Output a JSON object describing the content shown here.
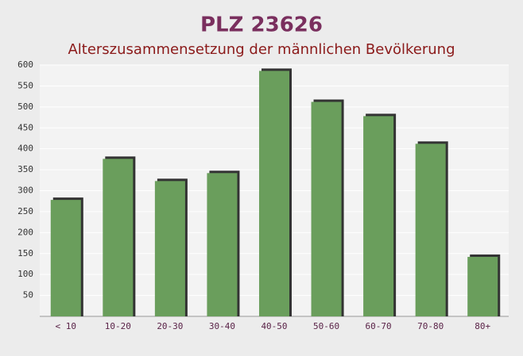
{
  "chart_data": {
    "type": "bar",
    "title": "PLZ 23626",
    "subtitle": "Alterszusammensetzung der männlichen Bevölkerung",
    "categories": [
      "< 10",
      "10-20",
      "20-30",
      "30-40",
      "40-50",
      "50-60",
      "60-70",
      "70-80",
      "80+"
    ],
    "values": [
      278,
      376,
      323,
      342,
      586,
      512,
      478,
      412,
      142
    ],
    "color": "#6a9e5c",
    "ylim": [
      0,
      600
    ],
    "yticks": [
      50,
      100,
      150,
      200,
      250,
      300,
      350,
      400,
      450,
      500,
      550,
      600
    ],
    "grid": true
  }
}
